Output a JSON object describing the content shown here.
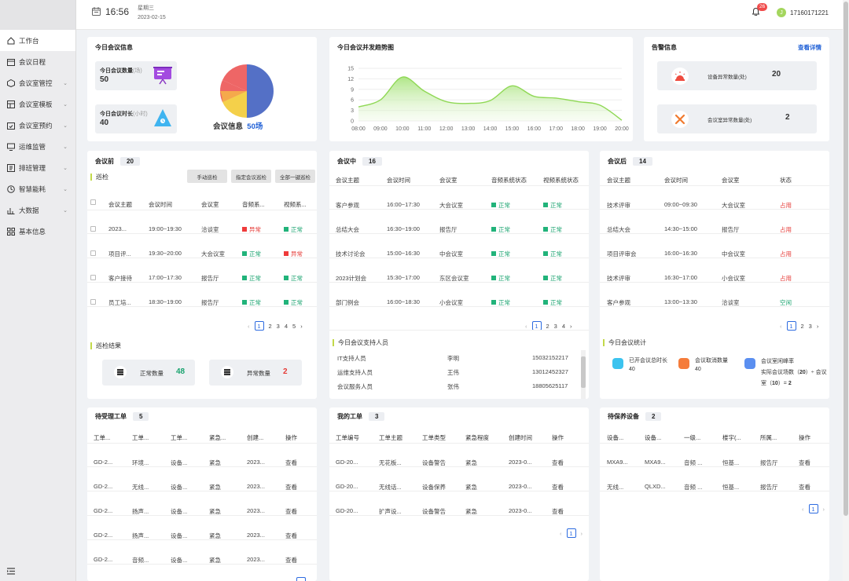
{
  "header": {
    "time": "16:56",
    "weekday": "星期三",
    "date": "2023-02-15",
    "notif_count": "26",
    "avatar_letter": "J",
    "username": "17160171221"
  },
  "sidebar": {
    "items": [
      {
        "label": "工作台",
        "icon": "home-icon"
      },
      {
        "label": "会议日程",
        "icon": "calendar-icon"
      },
      {
        "label": "会议室管控",
        "icon": "cube-icon"
      },
      {
        "label": "会议室模板",
        "icon": "template-icon"
      },
      {
        "label": "会议室预约",
        "icon": "booking-icon"
      },
      {
        "label": "运维监管",
        "icon": "monitor-icon"
      },
      {
        "label": "排班管理",
        "icon": "schedule-icon"
      },
      {
        "label": "智慧能耗",
        "icon": "energy-icon"
      },
      {
        "label": "大数据",
        "icon": "chart-icon"
      },
      {
        "label": "基本信息",
        "icon": "grid-icon"
      }
    ]
  },
  "today": {
    "title": "今日会议信息",
    "count_label": "今日会议数量",
    "count_unit": "(场)",
    "count_value": "50",
    "duration_label": "今日会议时长",
    "duration_unit": "(小时)",
    "duration_value": "40",
    "pie_label": "会议信息",
    "pie_value": "50场",
    "pie_colors": [
      "#5470c6",
      "#f4d04a",
      "#ee6666",
      "#f5a94b"
    ]
  },
  "trend": {
    "title": "今日会议并发趋势图",
    "chart_data": {
      "type": "area",
      "x": [
        "08:00",
        "09:00",
        "10:00",
        "11:00",
        "12:00",
        "13:00",
        "14:00",
        "15:00",
        "16:00",
        "17:00",
        "18:00",
        "19:00",
        "20:00"
      ],
      "y": [
        4,
        6,
        12.5,
        8.5,
        5.5,
        5,
        5.8,
        10,
        7,
        6.5,
        5.5,
        4.5,
        0.2
      ],
      "yticks": [
        "0",
        "3",
        "6",
        "9",
        "12",
        "15"
      ],
      "ylim": [
        0,
        15
      ]
    }
  },
  "alarm": {
    "title": "告警信息",
    "link": "查看详情",
    "items": [
      {
        "label": "设备异常数量(处)",
        "value": "20"
      },
      {
        "label": "会议室异常数量(处)",
        "value": "2"
      }
    ]
  },
  "before": {
    "title": "会议前",
    "count": "20",
    "section": "巡检",
    "buttons": [
      "手动巡检",
      "指定会议巡检",
      "全部一键巡检"
    ],
    "headers": [
      "会议主题",
      "会议时间",
      "会议室",
      "音频系...",
      "视频系..."
    ],
    "rows": [
      [
        "2023...",
        "19:00~19:30",
        "洽谈室",
        "异常",
        "正常"
      ],
      [
        "项目评...",
        "19:30~20:00",
        "大会议室",
        "正常",
        "异常"
      ],
      [
        "客户接待",
        "17:00~17:30",
        "报告厅",
        "正常",
        "正常"
      ],
      [
        "员工培...",
        "18:30~19:00",
        "报告厅",
        "正常",
        "正常"
      ]
    ],
    "pages": [
      "1",
      "2",
      "3",
      "4",
      "5"
    ],
    "result_title": "巡检结果",
    "normal_label": "正常数量",
    "normal_value": "48",
    "abnormal_label": "异常数量",
    "abnormal_value": "2"
  },
  "during": {
    "title": "会议中",
    "count": "16",
    "headers": [
      "会议主题",
      "会议时间",
      "会议室",
      "音频系统状态",
      "视频系统状态"
    ],
    "rows": [
      [
        "客户参观",
        "16:00~17:30",
        "大会议室",
        "正常",
        "正常"
      ],
      [
        "总结大会",
        "16:30~19:00",
        "报告厅",
        "正常",
        "正常"
      ],
      [
        "技术讨论会",
        "15:00~16:30",
        "中会议室",
        "正常",
        "正常"
      ],
      [
        "2023计划会",
        "15:30~17:00",
        "东区会议室",
        "正常",
        "正常"
      ],
      [
        "部门例会",
        "16:00~18:30",
        "小会议室",
        "正常",
        "正常"
      ]
    ],
    "pages": [
      "1",
      "2",
      "3",
      "4"
    ],
    "support_title": "今日会议支持人员",
    "support": [
      [
        "IT支持人员",
        "李明",
        "15032152217"
      ],
      [
        "运维支持人员",
        "王伟",
        "13012452327"
      ],
      [
        "会议服务人员",
        "张伟",
        "18805625117"
      ]
    ]
  },
  "after": {
    "title": "会议后",
    "count": "14",
    "headers": [
      "会议主题",
      "会议时间",
      "会议室",
      "状态"
    ],
    "rows": [
      [
        "技术评审",
        "09:00~09:30",
        "大会议室",
        "占用"
      ],
      [
        "总结大会",
        "14:30~15:00",
        "报告厅",
        "占用"
      ],
      [
        "项目评审会",
        "16:00~16:30",
        "中会议室",
        "占用"
      ],
      [
        "技术评审",
        "16:30~17:00",
        "小会议室",
        "占用"
      ],
      [
        "客户参观",
        "13:00~13:30",
        "洽谈室",
        "空闲"
      ]
    ],
    "pages": [
      "1",
      "2",
      "3"
    ],
    "stat_title": "今日会议统计",
    "stat1_label": "已开会议总时长",
    "stat1_value": "40",
    "stat2_label": "会议取消数量",
    "stat2_value": "40",
    "stat3_label": "会议室闲峰率",
    "stat3_formula_a": "实际会议场数（",
    "stat3_a": "20",
    "stat3_formula_b": "）÷ 会议",
    "stat3_formula_c": "室（",
    "stat3_b": "10",
    "stat3_formula_d": "）=",
    "stat3_result": "2"
  },
  "pending": {
    "title": "待受理工单",
    "count": "5",
    "headers": [
      "工单...",
      "工单...",
      "工单...",
      "紧急...",
      "创建...",
      "操作"
    ],
    "rows": [
      [
        "GD-2...",
        "环境...",
        "设备...",
        "紧急",
        "2023...",
        "查看"
      ],
      [
        "GD-2...",
        "无线...",
        "设备...",
        "紧急",
        "2023...",
        "查看"
      ],
      [
        "GD-2...",
        "扬声...",
        "设备...",
        "紧急",
        "2023...",
        "查看"
      ],
      [
        "GD-2...",
        "扬声...",
        "设备...",
        "紧急",
        "2023...",
        "查看"
      ],
      [
        "GD-2...",
        "音频...",
        "设备...",
        "紧急",
        "2023...",
        "查看"
      ]
    ]
  },
  "mine": {
    "title": "我的工单",
    "count": "3",
    "headers": [
      "工单编号",
      "工单主题",
      "工单类型",
      "紧急程度",
      "创建时间",
      "操作"
    ],
    "rows": [
      [
        "GD-20...",
        "无花板...",
        "设备警告",
        "紧急",
        "2023-0...",
        "查看"
      ],
      [
        "GD-20...",
        "无线话...",
        "设备保养",
        "紧急",
        "2023-0...",
        "查看"
      ],
      [
        "GD-20...",
        "扩声设...",
        "设备警告",
        "紧急",
        "2023-0...",
        "查看"
      ]
    ],
    "pages": [
      "1"
    ]
  },
  "maint": {
    "title": "待保养设备",
    "count": "2",
    "headers": [
      "设备...",
      "设备...",
      "一级...",
      "楼宇(...",
      "所属...",
      "操作"
    ],
    "rows": [
      [
        "MXA9...",
        "MXA9...",
        "音频 ...",
        "恒基...",
        "报告厅",
        "查看"
      ],
      [
        "无线...",
        "QLXD...",
        "音频 ...",
        "恒基...",
        "报告厅",
        "查看"
      ]
    ],
    "pages": [
      "1"
    ]
  }
}
